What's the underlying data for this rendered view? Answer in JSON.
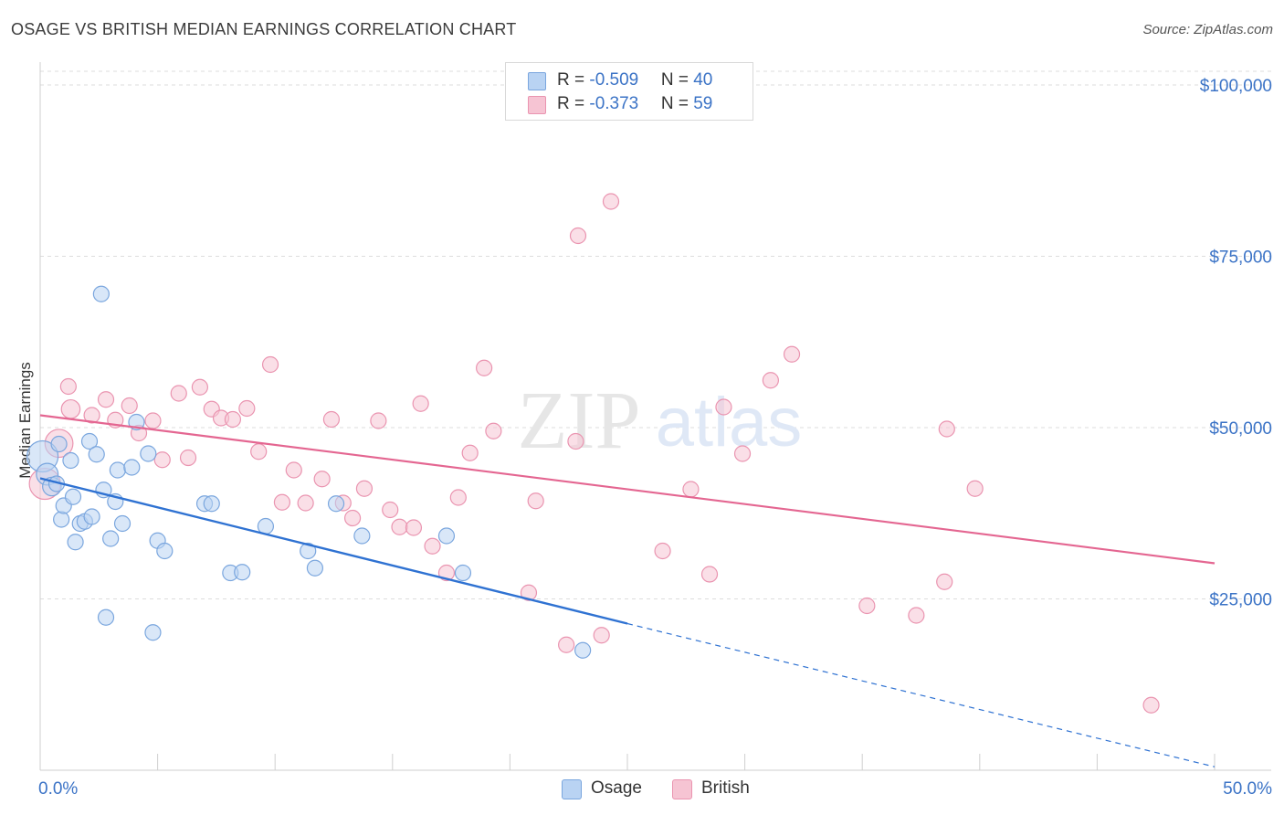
{
  "title": "OSAGE VS BRITISH MEDIAN EARNINGS CORRELATION CHART",
  "source": "Source: ZipAtlas.com",
  "legend": {
    "osage": {
      "r_label": "R = ",
      "r_value": "-0.509",
      "n_label": "N = ",
      "n_value": "40"
    },
    "british": {
      "r_label": "R = ",
      "r_value": "-0.373",
      "n_label": "N = ",
      "n_value": "59"
    }
  },
  "bottom_legend": {
    "osage": "Osage",
    "british": "British"
  },
  "colors": {
    "osage_fill": "#b9d3f3",
    "osage_stroke": "#7aa6de",
    "osage_line": "#2f72d2",
    "british_fill": "#f6c4d3",
    "british_stroke": "#ea94b0",
    "british_line": "#e46691",
    "axis_text": "#3b73c6",
    "grid": "#dddddd"
  },
  "chart_data": {
    "type": "scatter",
    "title": "OSAGE VS BRITISH MEDIAN EARNINGS CORRELATION CHART",
    "xlabel": "",
    "ylabel": "Median Earnings",
    "xlim": [
      0,
      50
    ],
    "ylim": [
      0,
      102000
    ],
    "x_tick_labels": [
      "0.0%",
      "50.0%"
    ],
    "y_ticks": [
      25000,
      50000,
      75000,
      100000
    ],
    "y_tick_labels": [
      "$25,000",
      "$50,000",
      "$75,000",
      "$100,000"
    ],
    "grid": true,
    "watermark": {
      "zip": "ZIP",
      "atlas": "atlas"
    },
    "series": [
      {
        "name": "Osage",
        "r": -0.509,
        "n": 40,
        "trend": {
          "x0": 0,
          "y0": 42600,
          "x1": 25,
          "y1": 21400,
          "dashed_to_x": 50,
          "dashed_to_y": 500
        },
        "points": [
          [
            0.1,
            45800,
            2.0
          ],
          [
            0.3,
            43200,
            1.4
          ],
          [
            0.5,
            41400,
            1.2
          ],
          [
            0.7,
            41800,
            1
          ],
          [
            0.8,
            47600,
            1
          ],
          [
            0.9,
            36600,
            1
          ],
          [
            1.0,
            38600,
            1
          ],
          [
            1.3,
            45200,
            1
          ],
          [
            1.4,
            39900,
            1
          ],
          [
            1.5,
            33300,
            1
          ],
          [
            1.7,
            36000,
            1
          ],
          [
            1.9,
            36300,
            1
          ],
          [
            2.1,
            48000,
            1
          ],
          [
            2.2,
            37000,
            1
          ],
          [
            2.4,
            46100,
            1
          ],
          [
            2.6,
            69500,
            1
          ],
          [
            2.7,
            40900,
            1
          ],
          [
            2.8,
            22300,
            1
          ],
          [
            3.0,
            33800,
            1
          ],
          [
            3.2,
            39200,
            1
          ],
          [
            3.3,
            43800,
            1
          ],
          [
            3.5,
            36000,
            1
          ],
          [
            3.9,
            44200,
            1
          ],
          [
            4.1,
            50800,
            1
          ],
          [
            4.6,
            46200,
            1
          ],
          [
            4.8,
            20100,
            1
          ],
          [
            5.0,
            33500,
            1
          ],
          [
            5.3,
            32000,
            1
          ],
          [
            7.0,
            38900,
            1
          ],
          [
            7.3,
            38900,
            1
          ],
          [
            8.1,
            28800,
            1
          ],
          [
            8.6,
            28900,
            1
          ],
          [
            9.6,
            35600,
            1
          ],
          [
            11.4,
            32000,
            1
          ],
          [
            11.7,
            29500,
            1
          ],
          [
            12.6,
            38900,
            1
          ],
          [
            13.7,
            34200,
            1
          ],
          [
            17.3,
            34200,
            1
          ],
          [
            18.0,
            28800,
            1
          ],
          [
            23.1,
            17500,
            1
          ]
        ]
      },
      {
        "name": "British",
        "r": -0.373,
        "n": 59,
        "trend": {
          "x0": 0,
          "y0": 51800,
          "x1": 50,
          "y1": 30200
        },
        "points": [
          [
            0.2,
            41800,
            2.0
          ],
          [
            0.8,
            47700,
            1.8
          ],
          [
            1.2,
            56000,
            1
          ],
          [
            1.3,
            52700,
            1.2
          ],
          [
            2.2,
            51800,
            1
          ],
          [
            2.8,
            54100,
            1
          ],
          [
            3.2,
            51100,
            1
          ],
          [
            3.8,
            53200,
            1
          ],
          [
            4.2,
            49200,
            1
          ],
          [
            4.8,
            51000,
            1
          ],
          [
            5.2,
            45300,
            1
          ],
          [
            5.9,
            55000,
            1
          ],
          [
            6.3,
            45600,
            1
          ],
          [
            6.8,
            55900,
            1
          ],
          [
            7.3,
            52700,
            1
          ],
          [
            7.7,
            51400,
            1
          ],
          [
            8.2,
            51200,
            1
          ],
          [
            8.8,
            52800,
            1
          ],
          [
            9.3,
            46500,
            1
          ],
          [
            9.8,
            59200,
            1
          ],
          [
            10.3,
            39100,
            1
          ],
          [
            10.8,
            43800,
            1
          ],
          [
            11.3,
            39000,
            1
          ],
          [
            12.0,
            42500,
            1
          ],
          [
            12.4,
            51200,
            1
          ],
          [
            12.9,
            39000,
            1
          ],
          [
            13.3,
            36800,
            1
          ],
          [
            13.8,
            41100,
            1
          ],
          [
            14.4,
            51000,
            1
          ],
          [
            14.9,
            38000,
            1
          ],
          [
            15.3,
            35500,
            1
          ],
          [
            15.9,
            35400,
            1
          ],
          [
            16.2,
            53500,
            1
          ],
          [
            16.7,
            32700,
            1
          ],
          [
            17.3,
            28800,
            1
          ],
          [
            17.8,
            39800,
            1
          ],
          [
            18.3,
            46300,
            1
          ],
          [
            18.9,
            58700,
            1
          ],
          [
            19.3,
            49500,
            1
          ],
          [
            20.8,
            25900,
            1
          ],
          [
            21.1,
            39300,
            1
          ],
          [
            22.4,
            18300,
            1
          ],
          [
            22.8,
            48000,
            1
          ],
          [
            22.9,
            78000,
            1
          ],
          [
            24.3,
            83000,
            1
          ],
          [
            23.9,
            19700,
            1
          ],
          [
            26.5,
            32000,
            1
          ],
          [
            27.7,
            41000,
            1
          ],
          [
            28.5,
            28600,
            1
          ],
          [
            29.1,
            53000,
            1
          ],
          [
            29.9,
            46200,
            1
          ],
          [
            31.1,
            56900,
            1
          ],
          [
            32.0,
            60700,
            1
          ],
          [
            35.2,
            24000,
            1
          ],
          [
            37.3,
            22600,
            1
          ],
          [
            38.5,
            27500,
            1
          ],
          [
            38.6,
            49800,
            1
          ],
          [
            39.8,
            41100,
            1
          ],
          [
            47.3,
            9500,
            1
          ]
        ]
      }
    ]
  }
}
